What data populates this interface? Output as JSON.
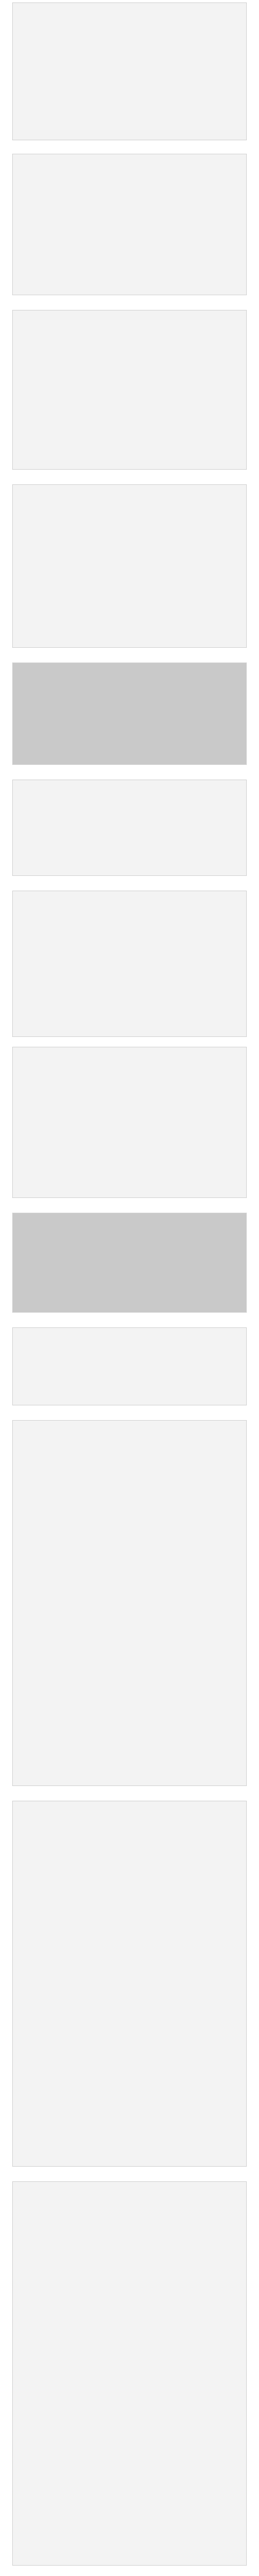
{
  "figures": [
    {
      "kind": "plot"
    },
    {
      "kind": "plot"
    },
    {
      "kind": "plot"
    },
    {
      "kind": "plot"
    },
    {
      "kind": "photo"
    },
    {
      "kind": "diagram"
    },
    {
      "kind": "plot"
    },
    {
      "kind": "photo"
    },
    {
      "kind": "diagram"
    },
    {
      "kind": "plot"
    }
  ]
}
